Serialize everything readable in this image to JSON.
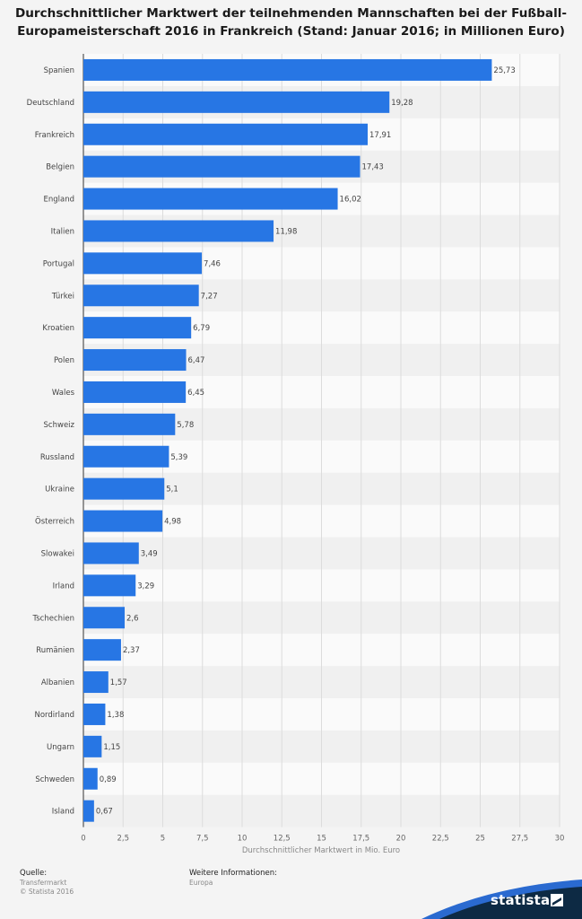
{
  "header": {
    "title": "Durchschnittlicher Marktwert der teilnehmenden Mannschaften bei der Fußball-Europameisterschaft 2016 in Frankreich (Stand: Januar 2016; in Millionen Euro)"
  },
  "chart_data": {
    "type": "bar",
    "orientation": "horizontal",
    "title": "Durchschnittlicher Marktwert der teilnehmenden Mannschaften bei der Fußball-Europameisterschaft 2016 in Frankreich (Stand: Januar 2016; in Millionen Euro)",
    "xlabel": "Durchschnittlicher Marktwert in Mio. Euro",
    "ylabel": "",
    "xlim": [
      0,
      30
    ],
    "ticks": [
      "0",
      "2,5",
      "5",
      "7,5",
      "10",
      "12,5",
      "15",
      "17,5",
      "20",
      "22,5",
      "25",
      "27,5",
      "30"
    ],
    "categories": [
      "Spanien",
      "Deutschland",
      "Frankreich",
      "Belgien",
      "England",
      "Italien",
      "Portugal",
      "Türkei",
      "Kroatien",
      "Polen",
      "Wales",
      "Schweiz",
      "Russland",
      "Ukraine",
      "Österreich",
      "Slowakei",
      "Irland",
      "Tschechien",
      "Rumänien",
      "Albanien",
      "Nordirland",
      "Ungarn",
      "Schweden",
      "Island"
    ],
    "values": [
      25.73,
      19.28,
      17.91,
      17.43,
      16.02,
      11.98,
      7.46,
      7.27,
      6.79,
      6.47,
      6.45,
      5.78,
      5.39,
      5.1,
      4.98,
      3.49,
      3.29,
      2.6,
      2.37,
      1.57,
      1.38,
      1.15,
      0.89,
      0.67
    ],
    "value_labels": [
      "25,73",
      "19,28",
      "17,91",
      "17,43",
      "16,02",
      "11,98",
      "7,46",
      "7,27",
      "6,79",
      "6,47",
      "6,45",
      "5,78",
      "5,39",
      "5,1",
      "4,98",
      "3,49",
      "3,29",
      "2,6",
      "2,37",
      "1,57",
      "1,38",
      "1,15",
      "0,89",
      "0,67"
    ],
    "grid": true,
    "legend": "none",
    "bar_color": "#2776e4"
  },
  "footer": {
    "source_heading": "Quelle:",
    "source_lines": [
      "Transfermarkt",
      "© Statista 2016"
    ],
    "info_heading": "Weitere Informationen:",
    "info_lines": [
      "Europa"
    ],
    "brand": "statista"
  },
  "colors": {
    "bar": "#2776e4",
    "brand_dark": "#0d2a44",
    "brand_accent": "#2a6ad0"
  }
}
